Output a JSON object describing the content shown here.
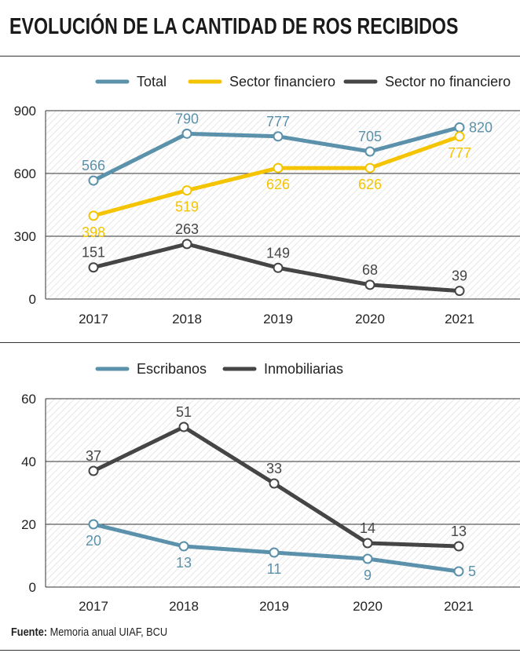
{
  "title": "EVOLUCIÓN DE LA CANTIDAD DE ROS RECIBIDOS",
  "source": {
    "label": "Fuente:",
    "text": "Memoria anual UIAF, BCU"
  },
  "colors": {
    "blue": "#5b91aa",
    "yellow": "#f5c400",
    "dark": "#454545",
    "grid": "#333333",
    "hatch": "#e9e9e9"
  },
  "chart_data": [
    {
      "type": "line",
      "categories": [
        "2017",
        "2018",
        "2019",
        "2020",
        "2021"
      ],
      "ylim": [
        0,
        900
      ],
      "yticks": [
        0,
        300,
        600,
        900
      ],
      "series": [
        {
          "name": "Total",
          "color": "#5b91aa",
          "values": [
            566,
            790,
            777,
            705,
            820
          ]
        },
        {
          "name": "Sector financiero",
          "color": "#f5c400",
          "values": [
            398,
            519,
            626,
            626,
            777
          ]
        },
        {
          "name": "Sector no financiero",
          "color": "#454545",
          "values": [
            151,
            263,
            149,
            68,
            39
          ]
        }
      ]
    },
    {
      "type": "line",
      "categories": [
        "2017",
        "2018",
        "2019",
        "2020",
        "2021"
      ],
      "ylim": [
        0,
        60
      ],
      "yticks": [
        0,
        20,
        40,
        60
      ],
      "series": [
        {
          "name": "Escribanos",
          "color": "#5b91aa",
          "values": [
            20,
            13,
            11,
            9,
            5
          ]
        },
        {
          "name": "Inmobiliarias",
          "color": "#454545",
          "values": [
            37,
            51,
            33,
            14,
            13
          ]
        }
      ]
    }
  ]
}
